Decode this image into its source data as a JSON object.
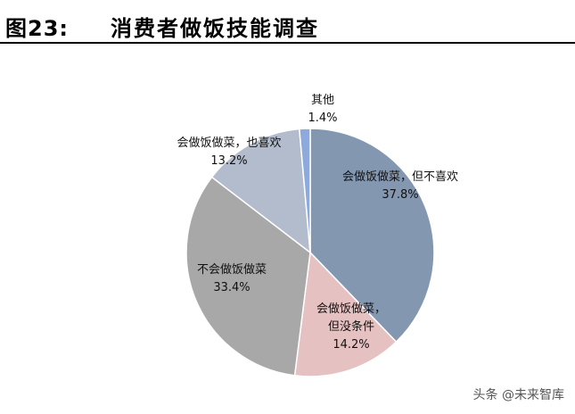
{
  "header": {
    "figure_label": "图23:",
    "title": "消费者做饭技能调查"
  },
  "chart_data": {
    "type": "pie",
    "title": "消费者做饭技能调查",
    "slices": [
      {
        "label": "会做饭做菜，但不喜欢",
        "label_lines": [
          "会做饭做菜，但不喜欢"
        ],
        "value": 37.8,
        "value_text": "37.8%",
        "color": "#8497b0"
      },
      {
        "label": "会做饭做菜，但没条件",
        "label_lines": [
          "会做饭做菜，",
          "但没条件"
        ],
        "value": 14.2,
        "value_text": "14.2%",
        "color": "#e6c1c1"
      },
      {
        "label": "不会做饭做菜",
        "label_lines": [
          "不会做饭做菜"
        ],
        "value": 33.4,
        "value_text": "33.4%",
        "color": "#a9a8a8"
      },
      {
        "label": "会做饭做菜，也喜欢",
        "label_lines": [
          "会做饭做菜，也喜欢"
        ],
        "value": 13.2,
        "value_text": "13.2%",
        "color": "#b3bccc"
      },
      {
        "label": "其他",
        "label_lines": [
          "其他"
        ],
        "value": 1.4,
        "value_text": "1.4%",
        "color": "#8ea9db"
      }
    ]
  },
  "watermark": "头条 @未来智库"
}
